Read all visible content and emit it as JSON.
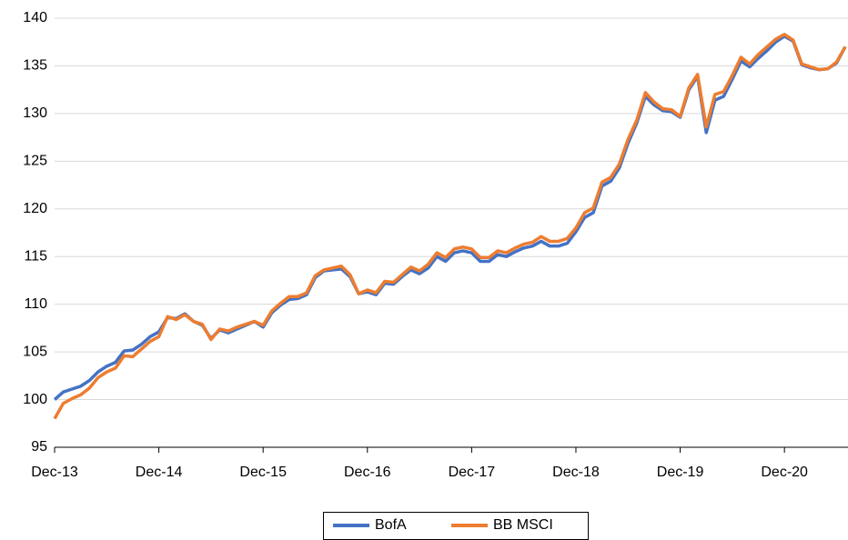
{
  "chart_data": {
    "type": "line",
    "categories": [
      "Dec-13",
      null,
      null,
      null,
      null,
      null,
      null,
      null,
      null,
      null,
      null,
      null,
      "Dec-14",
      null,
      null,
      null,
      null,
      null,
      null,
      null,
      null,
      null,
      null,
      null,
      "Dec-15",
      null,
      null,
      null,
      null,
      null,
      null,
      null,
      null,
      null,
      null,
      null,
      "Dec-16",
      null,
      null,
      null,
      null,
      null,
      null,
      null,
      null,
      null,
      null,
      null,
      "Dec-17",
      null,
      null,
      null,
      null,
      null,
      null,
      null,
      null,
      null,
      null,
      null,
      "Dec-18",
      null,
      null,
      null,
      null,
      null,
      null,
      null,
      null,
      null,
      null,
      null,
      "Dec-19",
      null,
      null,
      null,
      null,
      null,
      null,
      null,
      null,
      null,
      null,
      null,
      "Dec-20",
      null,
      null,
      null,
      null,
      null,
      null,
      null
    ],
    "series": [
      {
        "name": "BofA",
        "color": "#4472c4",
        "values": [
          100.0,
          100.8,
          101.1,
          101.4,
          102.0,
          102.9,
          103.5,
          103.9,
          105.1,
          105.2,
          105.8,
          106.6,
          107.1,
          108.6,
          108.5,
          109.0,
          108.2,
          107.8,
          106.4,
          107.3,
          107.0,
          107.4,
          107.8,
          108.2,
          107.6,
          109.1,
          109.9,
          110.5,
          110.6,
          111.0,
          112.8,
          113.5,
          113.6,
          113.7,
          112.9,
          111.1,
          111.3,
          111.0,
          112.2,
          112.1,
          112.9,
          113.6,
          113.2,
          113.8,
          115.0,
          114.5,
          115.4,
          115.6,
          115.4,
          114.5,
          114.5,
          115.2,
          115.0,
          115.5,
          115.9,
          116.1,
          116.6,
          116.1,
          116.1,
          116.4,
          117.6,
          119.1,
          119.6,
          122.4,
          122.9,
          124.3,
          126.9,
          129.0,
          131.8,
          130.9,
          130.3,
          130.2,
          129.6,
          132.5,
          133.9,
          128.0,
          131.4,
          131.8,
          133.6,
          135.5,
          134.9,
          135.8,
          136.6,
          137.5,
          138.1,
          137.6,
          135.1,
          134.8,
          134.6,
          134.7,
          135.3,
          137.0
        ]
      },
      {
        "name": "BB MSCI",
        "color": "#ed7d31",
        "values": [
          98.0,
          99.6,
          100.1,
          100.5,
          101.2,
          102.3,
          102.9,
          103.3,
          104.6,
          104.5,
          105.3,
          106.1,
          106.6,
          108.7,
          108.4,
          108.9,
          108.2,
          107.9,
          106.3,
          107.4,
          107.2,
          107.6,
          107.9,
          108.2,
          107.8,
          109.3,
          110.1,
          110.8,
          110.8,
          111.2,
          113.0,
          113.6,
          113.8,
          114.0,
          113.1,
          111.1,
          111.5,
          111.2,
          112.4,
          112.3,
          113.1,
          113.9,
          113.5,
          114.2,
          115.4,
          114.9,
          115.8,
          116.0,
          115.8,
          114.9,
          114.9,
          115.6,
          115.4,
          115.9,
          116.3,
          116.5,
          117.1,
          116.6,
          116.6,
          116.9,
          118.0,
          119.6,
          120.1,
          122.8,
          123.3,
          124.7,
          127.3,
          129.3,
          132.2,
          131.2,
          130.5,
          130.4,
          129.7,
          132.7,
          134.1,
          128.6,
          132.0,
          132.3,
          134.0,
          135.9,
          135.2,
          136.2,
          137.0,
          137.8,
          138.3,
          137.7,
          135.2,
          134.9,
          134.6,
          134.7,
          135.4,
          137.0
        ]
      }
    ],
    "ylim": [
      95,
      140
    ],
    "yticks": [
      95,
      100,
      105,
      110,
      115,
      120,
      125,
      130,
      135,
      140
    ],
    "grid": true,
    "legend": "bottom"
  }
}
